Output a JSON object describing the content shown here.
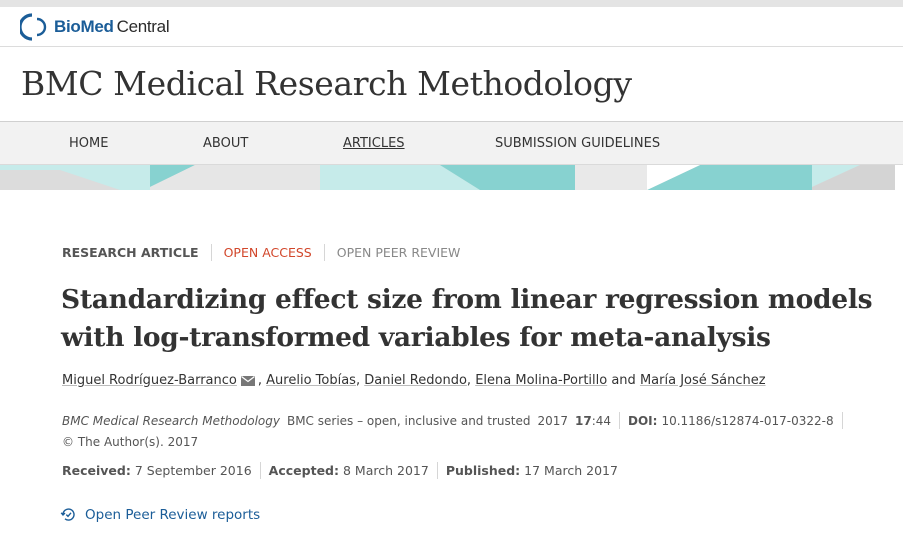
{
  "brand": {
    "bio": "BioMed",
    "central": "Central",
    "icon": "biomed-central-logo-mark"
  },
  "journal": {
    "title": "BMC Medical Research Methodology"
  },
  "nav": {
    "items": [
      {
        "label": "HOME"
      },
      {
        "label": "ABOUT"
      },
      {
        "label": "ARTICLES",
        "active": true
      },
      {
        "label": "SUBMISSION GUIDELINES"
      }
    ]
  },
  "labels": {
    "type": "RESEARCH ARTICLE",
    "open_access": "OPEN ACCESS",
    "open_peer_review": "OPEN PEER REVIEW"
  },
  "article": {
    "title": "Standardizing effect size from linear regression models with log-transformed variables for meta-analysis",
    "authors": [
      "Miguel Rodríguez-Barranco",
      "Aurelio Tobías",
      "Daniel Redondo",
      "Elena Molina-Portillo",
      "María José Sánchez"
    ],
    "separator_comma": ",",
    "separator_and": "and",
    "email_icon": "email-icon"
  },
  "citation": {
    "journal": "BMC Medical Research Methodology",
    "series": "BMC series – open, inclusive and trusted",
    "year": "2017",
    "volume": "17",
    "article_number": ":44",
    "doi_label": "DOI:",
    "doi": "10.1186/s12874-017-0322-8",
    "copyright": "© The Author(s). 2017"
  },
  "dates": {
    "received_label": "Received:",
    "received": "7 September 2016",
    "accepted_label": "Accepted:",
    "accepted": "8 March 2017",
    "published_label": "Published:",
    "published": "17 March 2017"
  },
  "peer_review": {
    "link": "Open Peer Review reports",
    "icon": "peer-review-cycle-icon"
  },
  "colors": {
    "brand_blue": "#1b5d98",
    "open_access_red": "#d2472b",
    "band_teal": "#87d2d0",
    "band_light_teal": "#c6ebea",
    "band_grey": "#dcdcdc"
  }
}
